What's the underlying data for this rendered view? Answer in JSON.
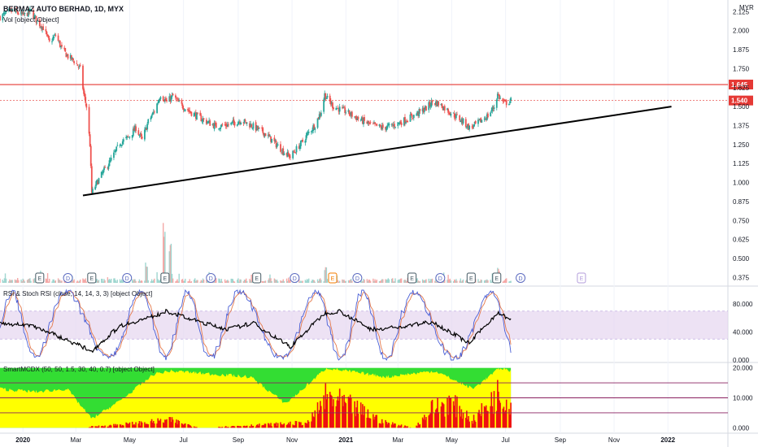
{
  "header": {
    "symbol_line": "BERMAZ AUTO BERHAD, 1D, MYX",
    "vol_line": "Vol [object Object]",
    "currency": "MYR"
  },
  "panes": {
    "rsi_label": "RSI & Stoch RSI (close, 14, 14, 3, 3) [object Object]",
    "smart_label": "SmartMCDX (50, 50, 1.5, 30, 40, 0.7) [object Object]"
  },
  "colors": {
    "up": "#26a69a",
    "down": "#ef5350",
    "resistance": "#e53935",
    "trendline": "#000000",
    "rsi_band": "#e6d6f0",
    "stoch_k": "#4a5fd6",
    "stoch_d": "#e57a4c",
    "rsi": "#000000",
    "smart_green": "#33dd33",
    "smart_yellow": "#ffff00",
    "smart_red": "#ee1111",
    "smart_level": "#8a2060"
  },
  "chart_data": [
    {
      "type": "candlestick",
      "xlim": [
        "2019-12-06",
        "2022-03-10"
      ],
      "x_ticks": [
        "2020",
        "Mar",
        "May",
        "Jul",
        "Sep",
        "Nov",
        "2021",
        "Mar",
        "May",
        "Jul",
        "Sep",
        "Nov",
        "2022"
      ],
      "x_tick_dates": [
        "2020-01-01",
        "2020-03-01",
        "2020-05-01",
        "2020-07-01",
        "2020-09-01",
        "2020-11-01",
        "2021-01-01",
        "2021-03-01",
        "2021-05-01",
        "2021-07-01",
        "2021-09-01",
        "2021-11-01",
        "2022-01-01"
      ],
      "ylim": [
        0.34,
        2.18
      ],
      "y_ticks": [
        "2.125",
        "2.000",
        "1.875",
        "1.750",
        "1.625",
        "1.500",
        "1.375",
        "1.250",
        "1.125",
        "1.000",
        "0.875",
        "0.750",
        "0.625",
        "0.500",
        "0.375"
      ],
      "price_path": [
        [
          "2019-12-06",
          2.09
        ],
        [
          "2019-12-20",
          2.13
        ],
        [
          "2020-01-02",
          2.1
        ],
        [
          "2020-01-10",
          2.13
        ],
        [
          "2020-01-17",
          2.06
        ],
        [
          "2020-01-24",
          2.02
        ],
        [
          "2020-01-31",
          1.92
        ],
        [
          "2020-02-07",
          1.97
        ],
        [
          "2020-02-14",
          1.88
        ],
        [
          "2020-02-21",
          1.83
        ],
        [
          "2020-02-28",
          1.8
        ],
        [
          "2020-03-06",
          1.75
        ],
        [
          "2020-03-10",
          1.58
        ],
        [
          "2020-03-13",
          1.5
        ],
        [
          "2020-03-17",
          1.25
        ],
        [
          "2020-03-19",
          0.93
        ],
        [
          "2020-03-24",
          0.99
        ],
        [
          "2020-04-01",
          1.07
        ],
        [
          "2020-04-10",
          1.15
        ],
        [
          "2020-04-20",
          1.26
        ],
        [
          "2020-04-30",
          1.3
        ],
        [
          "2020-05-08",
          1.36
        ],
        [
          "2020-05-15",
          1.28
        ],
        [
          "2020-05-22",
          1.4
        ],
        [
          "2020-05-29",
          1.47
        ],
        [
          "2020-06-05",
          1.58
        ],
        [
          "2020-06-12",
          1.53
        ],
        [
          "2020-06-19",
          1.57
        ],
        [
          "2020-06-26",
          1.52
        ],
        [
          "2020-07-10",
          1.46
        ],
        [
          "2020-07-24",
          1.41
        ],
        [
          "2020-08-07",
          1.37
        ],
        [
          "2020-08-21",
          1.38
        ],
        [
          "2020-09-04",
          1.41
        ],
        [
          "2020-09-18",
          1.37
        ],
        [
          "2020-10-02",
          1.32
        ],
        [
          "2020-10-09",
          1.28
        ],
        [
          "2020-10-16",
          1.24
        ],
        [
          "2020-10-23",
          1.2
        ],
        [
          "2020-10-30",
          1.17
        ],
        [
          "2020-11-06",
          1.22
        ],
        [
          "2020-11-13",
          1.27
        ],
        [
          "2020-11-20",
          1.33
        ],
        [
          "2020-11-27",
          1.38
        ],
        [
          "2020-12-04",
          1.47
        ],
        [
          "2020-12-08",
          1.58
        ],
        [
          "2020-12-11",
          1.55
        ],
        [
          "2020-12-18",
          1.5
        ],
        [
          "2020-12-31",
          1.47
        ],
        [
          "2021-01-15",
          1.42
        ],
        [
          "2021-01-29",
          1.38
        ],
        [
          "2021-02-12",
          1.36
        ],
        [
          "2021-02-26",
          1.38
        ],
        [
          "2021-03-05",
          1.4
        ],
        [
          "2021-03-19",
          1.44
        ],
        [
          "2021-04-02",
          1.49
        ],
        [
          "2021-04-09",
          1.53
        ],
        [
          "2021-04-16",
          1.52
        ],
        [
          "2021-04-30",
          1.46
        ],
        [
          "2021-05-14",
          1.4
        ],
        [
          "2021-05-21",
          1.36
        ],
        [
          "2021-05-28",
          1.38
        ],
        [
          "2021-06-11",
          1.44
        ],
        [
          "2021-06-18",
          1.5
        ],
        [
          "2021-06-22",
          1.58
        ],
        [
          "2021-06-25",
          1.55
        ],
        [
          "2021-06-30",
          1.52
        ],
        [
          "2021-07-07",
          1.54
        ]
      ],
      "levels": [
        {
          "label": "1.645",
          "value": 1.645,
          "color": "#e53935"
        },
        {
          "label": "1.540",
          "value": 1.54,
          "color": "#e53935"
        }
      ],
      "trendline": [
        [
          "2020-03-09",
          0.915
        ],
        [
          "2022-01-05",
          1.5
        ]
      ],
      "event_markers": [
        {
          "date": "2020-01-20",
          "label": "E",
          "kind": "earnings"
        },
        {
          "date": "2020-02-21",
          "label": "D",
          "kind": "dividend"
        },
        {
          "date": "2020-03-19",
          "label": "E",
          "kind": "earnings"
        },
        {
          "date": "2020-04-28",
          "label": "D",
          "kind": "dividend"
        },
        {
          "date": "2020-06-10",
          "label": "E",
          "kind": "earnings"
        },
        {
          "date": "2020-08-01",
          "label": "D",
          "kind": "dividend"
        },
        {
          "date": "2020-09-22",
          "label": "E",
          "kind": "earnings"
        },
        {
          "date": "2020-11-04",
          "label": "D",
          "kind": "dividend"
        },
        {
          "date": "2020-12-17",
          "label": "E",
          "kind": "earnings"
        },
        {
          "date": "2021-01-14",
          "label": "D",
          "kind": "dividend"
        },
        {
          "date": "2021-03-17",
          "label": "E",
          "kind": "earnings"
        },
        {
          "date": "2021-04-18",
          "label": "D",
          "kind": "dividend"
        },
        {
          "date": "2021-05-23",
          "label": "E",
          "kind": "earnings"
        },
        {
          "date": "2021-06-21",
          "label": "E",
          "kind": "earnings"
        },
        {
          "date": "2021-07-18",
          "label": "D",
          "kind": "dividend"
        },
        {
          "date": "2021-09-25",
          "label": "E",
          "kind": "future"
        }
      ]
    },
    {
      "type": "bar",
      "name": "Volume",
      "peaks": [
        [
          "2020-06-09",
          0.9
        ],
        [
          "2020-06-16",
          0.55
        ],
        [
          "2020-05-20",
          0.3
        ],
        [
          "2020-12-09",
          0.25
        ],
        [
          "2021-06-23",
          0.22
        ]
      ]
    },
    {
      "type": "line",
      "ylim": [
        0,
        100
      ],
      "y_ticks": [
        "80.000",
        "40.000",
        "0.000"
      ],
      "band": [
        30,
        70
      ],
      "rsi": [
        [
          "2019-12-06",
          52
        ],
        [
          "2020-01-10",
          50
        ],
        [
          "2020-02-05",
          37
        ],
        [
          "2020-03-19",
          13
        ],
        [
          "2020-04-20",
          49
        ],
        [
          "2020-05-29",
          63
        ],
        [
          "2020-06-12",
          70
        ],
        [
          "2020-07-10",
          58
        ],
        [
          "2020-08-20",
          44
        ],
        [
          "2020-09-18",
          53
        ],
        [
          "2020-10-30",
          19
        ],
        [
          "2020-12-08",
          67
        ],
        [
          "2020-12-25",
          70
        ],
        [
          "2021-01-29",
          44
        ],
        [
          "2021-03-05",
          47
        ],
        [
          "2021-04-09",
          55
        ],
        [
          "2021-05-21",
          24
        ],
        [
          "2021-06-22",
          68
        ],
        [
          "2021-07-07",
          58
        ]
      ]
    },
    {
      "type": "area",
      "ylim": [
        -1,
        21
      ],
      "y_ticks": [
        "20.000",
        "10.000",
        "0.000"
      ],
      "levels": [
        15,
        10,
        5
      ],
      "yellow_top": [
        [
          "2019-12-06",
          13
        ],
        [
          "2020-01-15",
          12
        ],
        [
          "2020-02-20",
          13
        ],
        [
          "2020-03-19",
          3
        ],
        [
          "2020-04-20",
          9
        ],
        [
          "2020-05-29",
          18
        ],
        [
          "2020-06-15",
          19
        ],
        [
          "2020-09-15",
          17
        ],
        [
          "2020-10-25",
          8
        ],
        [
          "2020-12-10",
          20
        ],
        [
          "2021-02-15",
          17
        ],
        [
          "2021-04-12",
          19
        ],
        [
          "2021-05-25",
          13
        ],
        [
          "2021-06-25",
          20
        ],
        [
          "2021-07-07",
          19
        ]
      ],
      "red": [
        [
          "2020-03-01",
          0
        ],
        [
          "2020-05-20",
          2
        ],
        [
          "2020-06-15",
          3
        ],
        [
          "2020-07-20",
          0
        ],
        [
          "2020-11-20",
          2
        ],
        [
          "2020-12-10",
          12
        ],
        [
          "2021-01-10",
          8
        ],
        [
          "2021-02-15",
          2
        ],
        [
          "2021-03-20",
          0
        ],
        [
          "2021-04-10",
          8
        ],
        [
          "2021-04-30",
          10
        ],
        [
          "2021-05-25",
          3
        ],
        [
          "2021-06-22",
          13
        ],
        [
          "2021-07-07",
          10
        ]
      ]
    }
  ]
}
